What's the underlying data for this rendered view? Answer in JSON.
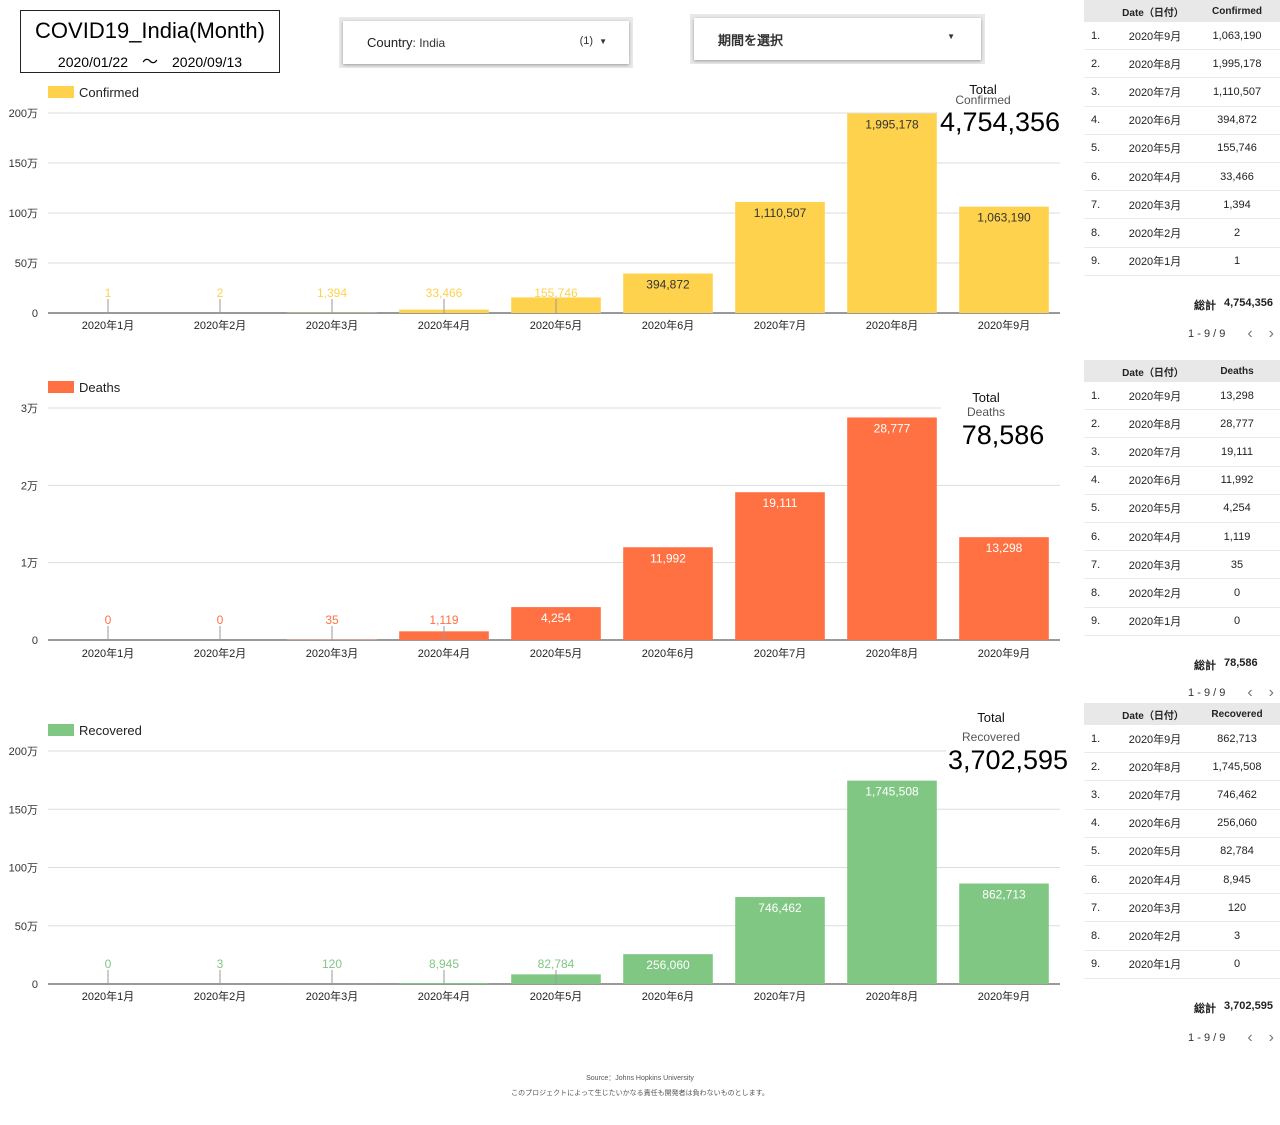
{
  "header": {
    "title": "COVID19_India(Month)",
    "start_date": "2020/01/22",
    "tilde": "〜",
    "end_date": "2020/09/13"
  },
  "controls": {
    "country_label": "Country",
    "country_value": ": India",
    "country_count": "(1)",
    "period_label": "期間を選択"
  },
  "colors": {
    "confirmed": "#fed24d",
    "deaths": "#ff7043",
    "recovered": "#81c784",
    "axis_text": "#333333",
    "grid": "#dddddd"
  },
  "chart_data": [
    {
      "type": "bar",
      "legend": "Confirmed",
      "categories": [
        "2020年1月",
        "2020年2月",
        "2020年3月",
        "2020年4月",
        "2020年5月",
        "2020年6月",
        "2020年7月",
        "2020年8月",
        "2020年9月"
      ],
      "values": [
        1,
        2,
        1394,
        33466,
        155746,
        394872,
        1110507,
        1995178,
        1063190
      ],
      "value_labels": [
        "1",
        "2",
        "1,394",
        "33,466",
        "155,746",
        "394,872",
        "1,110,507",
        "1,995,178",
        "1,063,190"
      ],
      "yticks": [
        0,
        500000,
        1000000,
        1500000,
        2000000
      ],
      "ytick_labels": [
        "0",
        "50万",
        "100万",
        "150万",
        "200万"
      ],
      "ylim": [
        0,
        2000000
      ],
      "scorecard": {
        "label": "Total",
        "sublabel": "Confirmed",
        "value": "4,754,356"
      }
    },
    {
      "type": "bar",
      "legend": "Deaths",
      "categories": [
        "2020年1月",
        "2020年2月",
        "2020年3月",
        "2020年4月",
        "2020年5月",
        "2020年6月",
        "2020年7月",
        "2020年8月",
        "2020年9月"
      ],
      "values": [
        0,
        0,
        35,
        1119,
        4254,
        11992,
        19111,
        28777,
        13298
      ],
      "value_labels": [
        "0",
        "0",
        "35",
        "1,119",
        "4,254",
        "11,992",
        "19,111",
        "28,777",
        "13,298"
      ],
      "yticks": [
        0,
        10000,
        20000,
        30000
      ],
      "ytick_labels": [
        "0",
        "1万",
        "2万",
        "3万"
      ],
      "ylim": [
        0,
        30000
      ],
      "scorecard": {
        "label": "Total",
        "sublabel": "Deaths",
        "value": "78,586"
      }
    },
    {
      "type": "bar",
      "legend": "Recovered",
      "categories": [
        "2020年1月",
        "2020年2月",
        "2020年3月",
        "2020年4月",
        "2020年5月",
        "2020年6月",
        "2020年7月",
        "2020年8月",
        "2020年9月"
      ],
      "values": [
        0,
        3,
        120,
        8945,
        82784,
        256060,
        746462,
        1745508,
        862713
      ],
      "value_labels": [
        "0",
        "3",
        "120",
        "8,945",
        "82,784",
        "256,060",
        "746,462",
        "1,745,508",
        "862,713"
      ],
      "yticks": [
        0,
        500000,
        1000000,
        1500000,
        2000000
      ],
      "ytick_labels": [
        "0",
        "50万",
        "100万",
        "150万",
        "200万"
      ],
      "ylim": [
        0,
        2000000
      ],
      "scorecard": {
        "label": "Total",
        "sublabel": "Recovered",
        "value": "3,702,595"
      }
    }
  ],
  "tables": [
    {
      "date_header": "Date（日付）",
      "value_header": "Confirmed",
      "rows": [
        {
          "idx": "1.",
          "date": "2020年9月",
          "value": "1,063,190"
        },
        {
          "idx": "2.",
          "date": "2020年8月",
          "value": "1,995,178"
        },
        {
          "idx": "3.",
          "date": "2020年7月",
          "value": "1,110,507"
        },
        {
          "idx": "4.",
          "date": "2020年6月",
          "value": "394,872"
        },
        {
          "idx": "5.",
          "date": "2020年5月",
          "value": "155,746"
        },
        {
          "idx": "6.",
          "date": "2020年4月",
          "value": "33,466"
        },
        {
          "idx": "7.",
          "date": "2020年3月",
          "value": "1,394"
        },
        {
          "idx": "8.",
          "date": "2020年2月",
          "value": "2"
        },
        {
          "idx": "9.",
          "date": "2020年1月",
          "value": "1"
        }
      ],
      "total_label": "総計",
      "total_value": "4,754,356",
      "pagination": "1 - 9 / 9"
    },
    {
      "date_header": "Date（日付）",
      "value_header": "Deaths",
      "rows": [
        {
          "idx": "1.",
          "date": "2020年9月",
          "value": "13,298"
        },
        {
          "idx": "2.",
          "date": "2020年8月",
          "value": "28,777"
        },
        {
          "idx": "3.",
          "date": "2020年7月",
          "value": "19,111"
        },
        {
          "idx": "4.",
          "date": "2020年6月",
          "value": "11,992"
        },
        {
          "idx": "5.",
          "date": "2020年5月",
          "value": "4,254"
        },
        {
          "idx": "6.",
          "date": "2020年4月",
          "value": "1,119"
        },
        {
          "idx": "7.",
          "date": "2020年3月",
          "value": "35"
        },
        {
          "idx": "8.",
          "date": "2020年2月",
          "value": "0"
        },
        {
          "idx": "9.",
          "date": "2020年1月",
          "value": "0"
        }
      ],
      "total_label": "総計",
      "total_value": "78,586",
      "pagination": "1 - 9 / 9"
    },
    {
      "date_header": "Date（日付）",
      "value_header": "Recovered",
      "rows": [
        {
          "idx": "1.",
          "date": "2020年9月",
          "value": "862,713"
        },
        {
          "idx": "2.",
          "date": "2020年8月",
          "value": "1,745,508"
        },
        {
          "idx": "3.",
          "date": "2020年7月",
          "value": "746,462"
        },
        {
          "idx": "4.",
          "date": "2020年6月",
          "value": "256,060"
        },
        {
          "idx": "5.",
          "date": "2020年5月",
          "value": "82,784"
        },
        {
          "idx": "6.",
          "date": "2020年4月",
          "value": "8,945"
        },
        {
          "idx": "7.",
          "date": "2020年3月",
          "value": "120"
        },
        {
          "idx": "8.",
          "date": "2020年2月",
          "value": "3"
        },
        {
          "idx": "9.",
          "date": "2020年1月",
          "value": "0"
        }
      ],
      "total_label": "総計",
      "total_value": "3,702,595",
      "pagination": "1 - 9 / 9"
    }
  ],
  "footer": {
    "source": "Source：Johns Hopkins University",
    "disclaimer": "このプロジェクトによって生じたいかなる責任も開発者は負わないものとします。"
  }
}
